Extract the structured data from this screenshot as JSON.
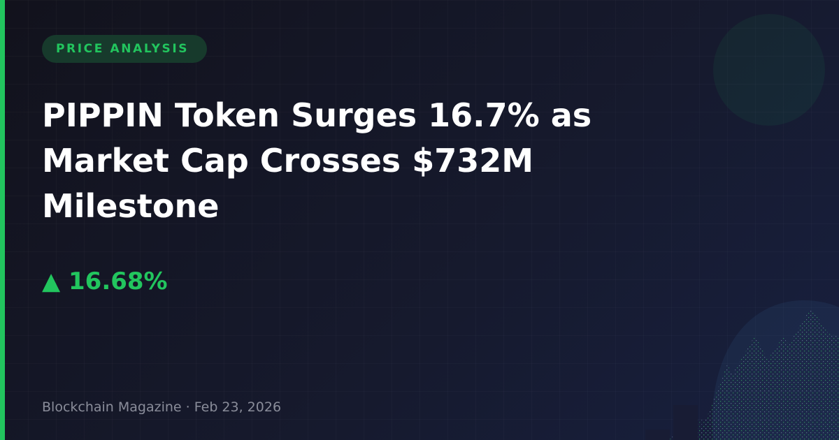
{
  "badge": {
    "label": "PRICE ANALYSIS"
  },
  "headline": "PIPPIN Token Surges 16.7% as Market Cap Crosses $732M Milestone",
  "price_change": {
    "arrow": "▲",
    "value": "16.68%",
    "direction": "up"
  },
  "footer": {
    "source": "Blockchain Magazine",
    "separator": "·",
    "date": "Feb 23, 2026"
  },
  "colors": {
    "accent": "#22c55e",
    "background": "#161a2e",
    "text": "#ffffff",
    "muted": "#8a8d9a"
  }
}
